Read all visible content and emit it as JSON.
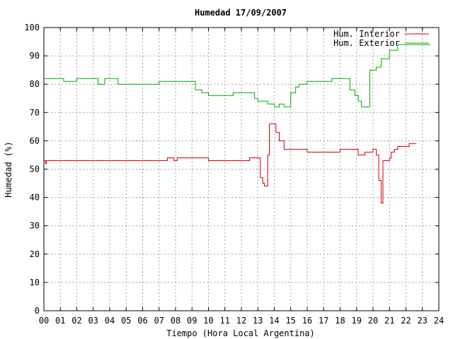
{
  "chart_data": {
    "type": "line",
    "title": "Humedad 17/09/2007",
    "xlabel": "Tiempo (Hora Local Argentina)",
    "ylabel": "Humedad (%)",
    "xlim": [
      0,
      24
    ],
    "ylim": [
      0,
      100
    ],
    "x_ticks": [
      "00",
      "01",
      "02",
      "03",
      "04",
      "05",
      "06",
      "07",
      "08",
      "09",
      "10",
      "11",
      "12",
      "13",
      "14",
      "15",
      "16",
      "17",
      "18",
      "19",
      "20",
      "21",
      "22",
      "23",
      "24"
    ],
    "y_ticks": [
      "0",
      "10",
      "20",
      "30",
      "40",
      "50",
      "60",
      "70",
      "80",
      "90",
      "100"
    ],
    "grid": true,
    "legend_position": "top-right",
    "series": [
      {
        "name": "Hum. Interior",
        "color": "#cc0000",
        "x": [
          0,
          0.1,
          0.15,
          1.0,
          1.1,
          3.5,
          4.2,
          6.6,
          7.5,
          7.9,
          8.1,
          9.0,
          10.0,
          11.5,
          12.3,
          12.5,
          13.0,
          13.15,
          13.3,
          13.4,
          13.5,
          13.6,
          13.7,
          14.0,
          14.1,
          14.3,
          14.6,
          15.0,
          15.5,
          16.0,
          17.0,
          18.0,
          18.9,
          19.1,
          19.5,
          20.0,
          20.2,
          20.35,
          20.5,
          20.6,
          21.0,
          21.1,
          21.3,
          21.5,
          22.0,
          22.2,
          22.6
        ],
        "values": [
          53,
          52,
          53,
          53,
          53,
          53,
          53,
          53,
          54,
          53,
          54,
          54,
          53,
          53,
          53,
          54,
          54,
          47,
          45,
          44,
          44,
          55,
          66,
          66,
          63,
          60,
          57,
          57,
          57,
          56,
          56,
          57,
          57,
          55,
          56,
          57,
          55,
          46,
          38,
          53,
          54,
          56,
          57,
          58,
          58,
          59,
          59
        ]
      },
      {
        "name": "Hum. Exterior",
        "color": "#00aa00",
        "x": [
          0,
          0.5,
          1.0,
          1.2,
          2.0,
          2.3,
          3.0,
          3.3,
          3.7,
          4.0,
          4.5,
          5.5,
          6.0,
          6.5,
          7.0,
          7.5,
          8.0,
          8.3,
          9.0,
          9.2,
          9.6,
          10.0,
          10.5,
          10.8,
          11.2,
          11.5,
          12.0,
          12.5,
          12.8,
          13.0,
          13.3,
          13.6,
          14.0,
          14.3,
          14.6,
          15.0,
          15.3,
          15.5,
          16.0,
          16.5,
          17.0,
          17.5,
          18.0,
          18.3,
          18.6,
          18.9,
          19.1,
          19.3,
          19.5,
          19.8,
          20.2,
          20.5,
          21.0,
          21.5,
          22.0,
          22.5,
          23.0,
          23.5
        ],
        "values": [
          82,
          82,
          82,
          81,
          82,
          82,
          82,
          80,
          82,
          82,
          80,
          80,
          80,
          80,
          81,
          81,
          81,
          81,
          81,
          78,
          77,
          76,
          76,
          76,
          76,
          77,
          77,
          77,
          75,
          74,
          74,
          73,
          72,
          73,
          72,
          77,
          79,
          80,
          81,
          81,
          81,
          82,
          82,
          82,
          78,
          76,
          74,
          72,
          72,
          85,
          86,
          89,
          92,
          94,
          94,
          94,
          94,
          94
        ]
      }
    ]
  }
}
